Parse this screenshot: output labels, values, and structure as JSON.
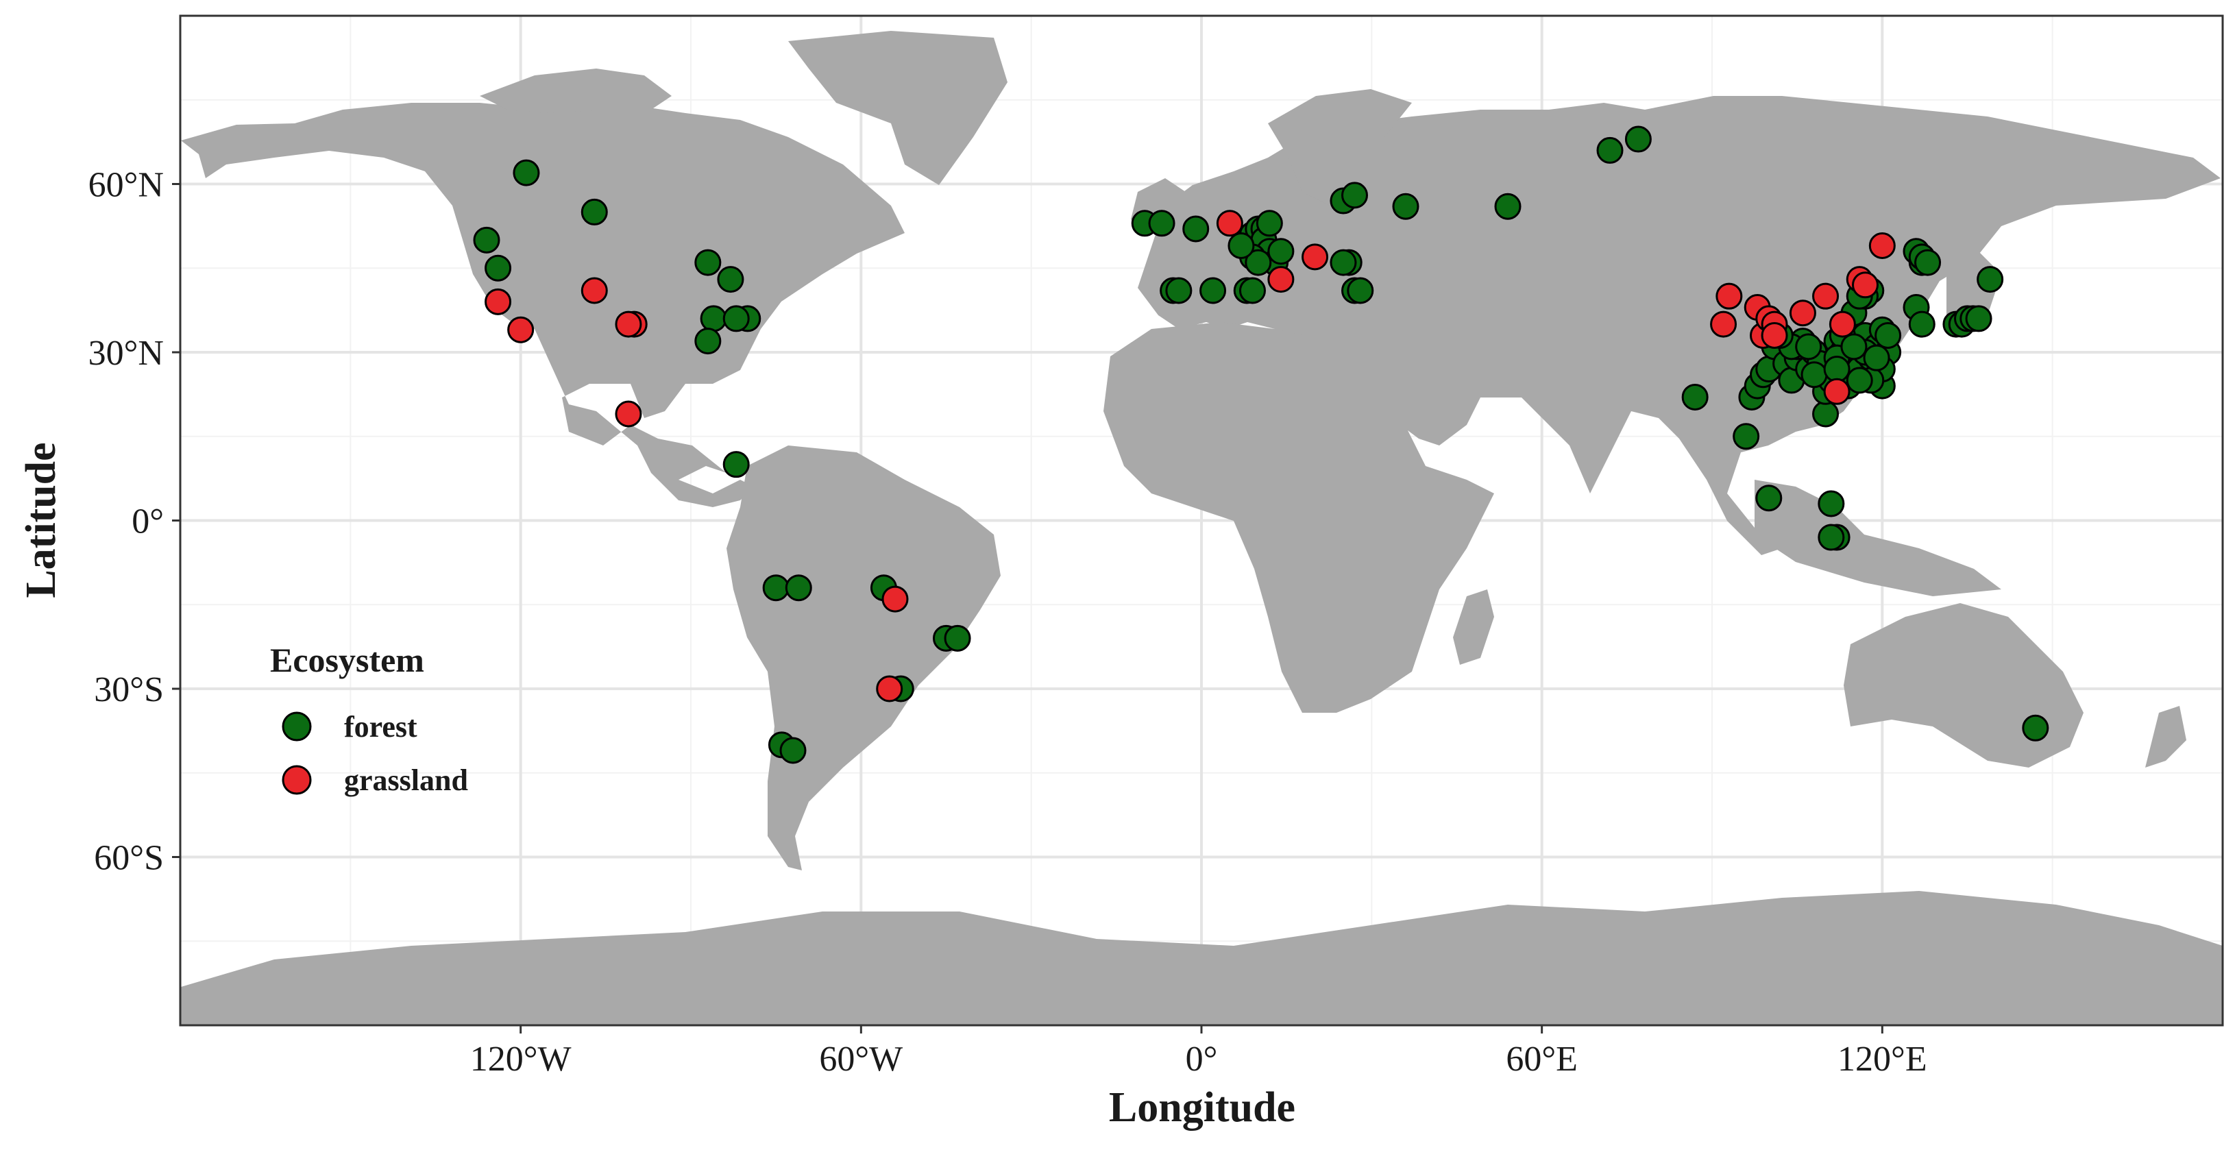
{
  "chart_data": {
    "type": "scatter",
    "xlabel": "Longitude",
    "ylabel": "Latitude",
    "xlim": [
      -180,
      180
    ],
    "ylim": [
      -90,
      90
    ],
    "x_ticks": [
      {
        "value": -120,
        "label": "120°W"
      },
      {
        "value": -60,
        "label": "60°W"
      },
      {
        "value": 0,
        "label": "0°"
      },
      {
        "value": 60,
        "label": "60°E"
      },
      {
        "value": 120,
        "label": "120°E"
      }
    ],
    "y_ticks": [
      {
        "value": 60,
        "label": "60°N"
      },
      {
        "value": 30,
        "label": "30°N"
      },
      {
        "value": 0,
        "label": "0°"
      },
      {
        "value": -30,
        "label": "30°S"
      },
      {
        "value": -60,
        "label": "60°S"
      }
    ],
    "grid": true,
    "legend": {
      "title": "Ecosystem",
      "position": "bottom-left"
    },
    "series": [
      {
        "name": "forest",
        "color": "#0b6b12",
        "points": [
          [
            -119,
            62
          ],
          [
            -126,
            50
          ],
          [
            -124,
            45
          ],
          [
            -107,
            55
          ],
          [
            -87,
            46
          ],
          [
            -83,
            43
          ],
          [
            -86,
            36
          ],
          [
            -80,
            36
          ],
          [
            -82,
            36
          ],
          [
            -87,
            32
          ],
          [
            -82,
            10
          ],
          [
            -75,
            -12
          ],
          [
            -71,
            -12
          ],
          [
            -56,
            -12
          ],
          [
            -45,
            -21
          ],
          [
            -43,
            -21
          ],
          [
            -53,
            -30
          ],
          [
            -74,
            -40
          ],
          [
            -72,
            -41
          ],
          [
            -10,
            53
          ],
          [
            -7,
            53
          ],
          [
            -1,
            52
          ],
          [
            2,
            41
          ],
          [
            -5,
            41
          ],
          [
            -4,
            41
          ],
          [
            9,
            51
          ],
          [
            10,
            52
          ],
          [
            11,
            52
          ],
          [
            11,
            50
          ],
          [
            12,
            48
          ],
          [
            13,
            46
          ],
          [
            9,
            47
          ],
          [
            10,
            46
          ],
          [
            7,
            49
          ],
          [
            14,
            48
          ],
          [
            8,
            41
          ],
          [
            9,
            41
          ],
          [
            12,
            53
          ],
          [
            26,
            46
          ],
          [
            25,
            46
          ],
          [
            27,
            41
          ],
          [
            28,
            41
          ],
          [
            25,
            57
          ],
          [
            27,
            58
          ],
          [
            36,
            56
          ],
          [
            54,
            56
          ],
          [
            72,
            66
          ],
          [
            77,
            68
          ],
          [
            87,
            22
          ],
          [
            96,
            15
          ],
          [
            97,
            22
          ],
          [
            98,
            24
          ],
          [
            99,
            26
          ],
          [
            100,
            27
          ],
          [
            100,
            4
          ],
          [
            101,
            31
          ],
          [
            103,
            28
          ],
          [
            104,
            25
          ],
          [
            105,
            29
          ],
          [
            106,
            31
          ],
          [
            107,
            27
          ],
          [
            108,
            30
          ],
          [
            109,
            28
          ],
          [
            110,
            19
          ],
          [
            110,
            23
          ],
          [
            111,
            25
          ],
          [
            111,
            3
          ],
          [
            112,
            -3
          ],
          [
            111,
            -3
          ],
          [
            112,
            32
          ],
          [
            113,
            30
          ],
          [
            114,
            28
          ],
          [
            114,
            24
          ],
          [
            115,
            29
          ],
          [
            116,
            27
          ],
          [
            117,
            33
          ],
          [
            118,
            29
          ],
          [
            119,
            31
          ],
          [
            120,
            24
          ],
          [
            120,
            34
          ],
          [
            121,
            30
          ],
          [
            120,
            27
          ],
          [
            118,
            25
          ],
          [
            117,
            30
          ],
          [
            113,
            33
          ],
          [
            112,
            29
          ],
          [
            108,
            26
          ],
          [
            105,
            31
          ],
          [
            106,
            32
          ],
          [
            104,
            31
          ],
          [
            102,
            33
          ],
          [
            115,
            37
          ],
          [
            118,
            41
          ],
          [
            117,
            40
          ],
          [
            116,
            40
          ],
          [
            119,
            29
          ],
          [
            121,
            33
          ],
          [
            116,
            25
          ],
          [
            107,
            31
          ],
          [
            112,
            27
          ],
          [
            115,
            31
          ],
          [
            126,
            48
          ],
          [
            127,
            46
          ],
          [
            127,
            47
          ],
          [
            128,
            46
          ],
          [
            126,
            38
          ],
          [
            127,
            35
          ],
          [
            133,
            35
          ],
          [
            134,
            35
          ],
          [
            135,
            36
          ],
          [
            136,
            36
          ],
          [
            137,
            36
          ],
          [
            139,
            43
          ],
          [
            147,
            -37
          ]
        ]
      },
      {
        "name": "grassland",
        "color": "#e8262a",
        "points": [
          [
            -124,
            39
          ],
          [
            -120,
            34
          ],
          [
            -107,
            41
          ],
          [
            -100,
            35
          ],
          [
            -101,
            35
          ],
          [
            -101,
            19
          ],
          [
            -54,
            -14
          ],
          [
            -55,
            -30
          ],
          [
            5,
            53
          ],
          [
            14,
            43
          ],
          [
            20,
            47
          ],
          [
            93,
            40
          ],
          [
            92,
            35
          ],
          [
            98,
            38
          ],
          [
            99,
            33
          ],
          [
            100,
            36
          ],
          [
            101,
            35
          ],
          [
            101,
            33
          ],
          [
            106,
            37
          ],
          [
            110,
            40
          ],
          [
            113,
            35
          ],
          [
            116,
            43
          ],
          [
            117,
            42
          ],
          [
            120,
            49
          ],
          [
            112,
            23
          ]
        ]
      }
    ]
  }
}
